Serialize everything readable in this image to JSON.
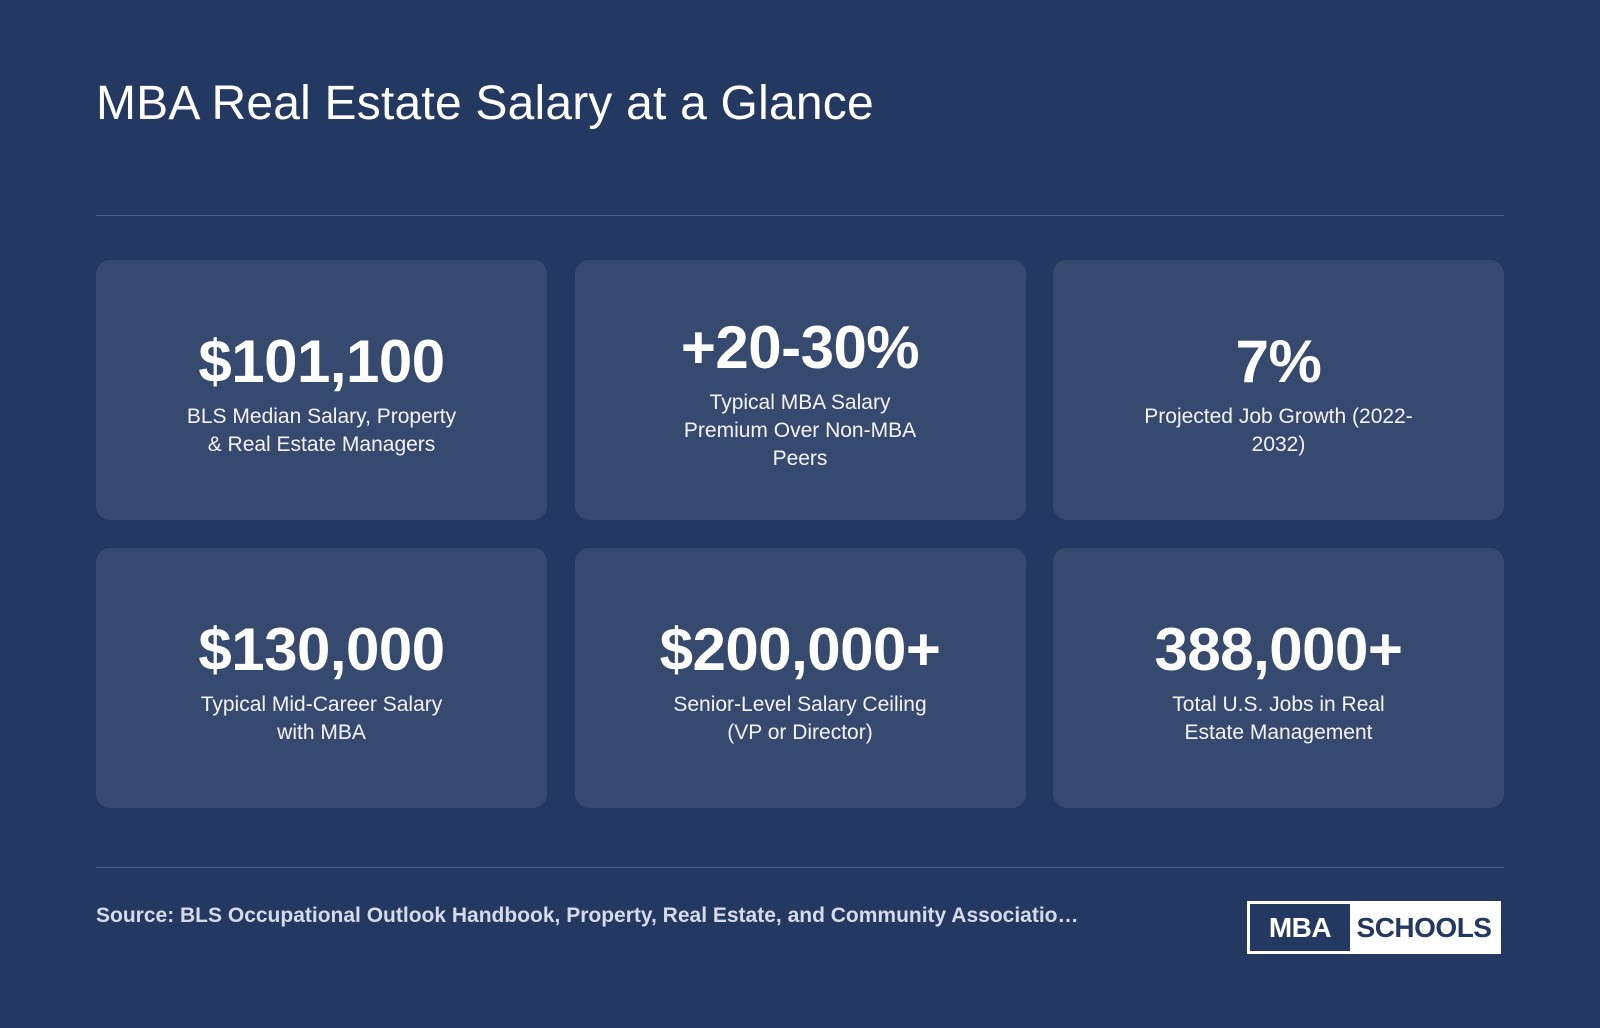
{
  "title": "MBA Real Estate Salary at a Glance",
  "stats": [
    {
      "value": "$101,100",
      "label": "BLS Median Salary, Property & Real Estate Managers"
    },
    {
      "value": "+20-30%",
      "label": "Typical MBA Salary Premium Over Non-MBA Peers"
    },
    {
      "value": "7%",
      "label": "Projected Job Growth (2022-2032)"
    },
    {
      "value": "$130,000",
      "label": "Typical Mid-Career Salary with MBA"
    },
    {
      "value": "$200,000+",
      "label": "Senior-Level Salary Ceiling (VP or Director)"
    },
    {
      "value": "388,000+",
      "label": "Total U.S. Jobs in Real Estate Management"
    }
  ],
  "source": "Source: BLS Occupational Outlook Handbook, Property, Real Estate, and Community Associatio…",
  "logo": {
    "left": "MBA",
    "right": "SCHOOLS"
  },
  "colors": {
    "background": "#243962",
    "card": "#36496f",
    "divider": "#4d6390"
  }
}
